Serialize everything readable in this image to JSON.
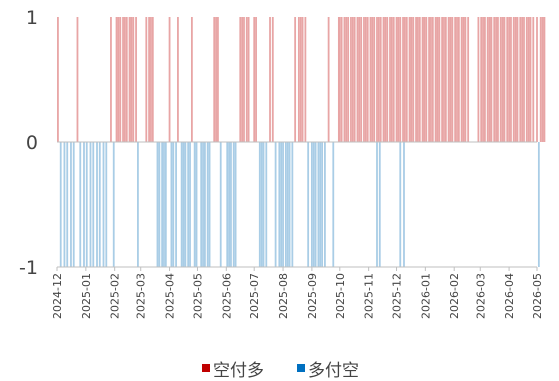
{
  "chart_data": {
    "type": "bar",
    "ylim": [
      -1,
      1
    ],
    "yticks": [
      "1",
      "0",
      "-1"
    ],
    "x_range": [
      "2024-12",
      "2026-05"
    ],
    "x_tick_labels": [
      "2024-12",
      "2025-01",
      "2025-02",
      "2025-03",
      "2025-04",
      "2025-05",
      "2025-06",
      "2025-07",
      "2025-08",
      "2025-09",
      "2025-10",
      "2025-11",
      "2025-12",
      "2026-01",
      "2026-02",
      "2026-03",
      "2026-04",
      "2026-05"
    ],
    "legend": {
      "position": "bottom"
    },
    "colors": {
      "positive": "#e8a5a5",
      "negative": "#a9cde6",
      "axis": "#bfbfbf",
      "legend_positive": "#c00000",
      "legend_negative": "#0070c0"
    },
    "series": [
      {
        "name": "空付多",
        "value": 1,
        "dates": [
          "2024-12-02",
          "2024-12-23",
          "2025-01-28",
          "2025-02-03",
          "2025-02-05",
          "2025-02-07",
          "2025-02-10",
          "2025-02-12",
          "2025-02-14",
          "2025-02-17",
          "2025-02-19",
          "2025-02-21",
          "2025-02-24",
          "2025-03-07",
          "2025-03-10",
          "2025-03-12",
          "2025-03-14",
          "2025-04-01",
          "2025-04-10",
          "2025-04-25",
          "2025-05-19",
          "2025-05-21",
          "2025-05-23",
          "2025-06-16",
          "2025-06-18",
          "2025-06-20",
          "2025-06-23",
          "2025-06-25",
          "2025-07-01",
          "2025-07-03",
          "2025-07-18",
          "2025-07-21",
          "2025-08-14",
          "2025-08-18",
          "2025-08-20",
          "2025-08-22",
          "2025-08-25",
          "2025-09-19",
          "2025-09-30",
          "2025-10-01",
          "2025-10-03",
          "2025-10-06",
          "2025-10-08",
          "2025-10-10",
          "2025-10-13",
          "2025-10-15",
          "2025-10-17",
          "2025-10-20",
          "2025-10-22",
          "2025-10-24",
          "2025-10-27",
          "2025-10-29",
          "2025-10-31",
          "2025-11-03",
          "2025-11-05",
          "2025-11-07",
          "2025-11-10",
          "2025-11-12",
          "2025-11-14",
          "2025-11-17",
          "2025-11-19",
          "2025-11-21",
          "2025-11-24",
          "2025-11-26",
          "2025-11-28",
          "2025-12-01",
          "2025-12-03",
          "2025-12-05",
          "2025-12-08",
          "2025-12-10",
          "2025-12-12",
          "2025-12-15",
          "2025-12-17",
          "2025-12-19",
          "2025-12-22",
          "2025-12-24",
          "2025-12-26",
          "2025-12-29",
          "2025-12-31",
          "2026-01-02",
          "2026-01-05",
          "2026-01-07",
          "2026-01-09",
          "2026-01-12",
          "2026-01-14",
          "2026-01-16",
          "2026-01-19",
          "2026-01-21",
          "2026-01-23",
          "2026-01-26",
          "2026-01-28",
          "2026-01-30",
          "2026-02-02",
          "2026-02-04",
          "2026-02-06",
          "2026-02-09",
          "2026-02-11",
          "2026-02-13",
          "2026-02-16",
          "2026-02-27",
          "2026-03-02",
          "2026-03-04",
          "2026-03-06",
          "2026-03-09",
          "2026-03-11",
          "2026-03-13",
          "2026-03-16",
          "2026-03-18",
          "2026-03-20",
          "2026-03-23",
          "2026-03-25",
          "2026-03-27",
          "2026-03-30",
          "2026-04-01",
          "2026-04-03",
          "2026-04-06",
          "2026-04-08",
          "2026-04-10",
          "2026-04-13",
          "2026-04-15",
          "2026-04-17",
          "2026-04-20",
          "2026-04-22",
          "2026-04-24",
          "2026-04-27",
          "2026-05-01",
          "2026-05-05",
          "2026-05-07",
          "2026-05-09"
        ]
      },
      {
        "name": "多付空",
        "value": -1,
        "dates": [
          "2024-12-05",
          "2024-12-09",
          "2024-12-12",
          "2024-12-16",
          "2024-12-19",
          "2024-12-26",
          "2024-12-30",
          "2025-01-02",
          "2025-01-06",
          "2025-01-09",
          "2025-01-13",
          "2025-01-16",
          "2025-01-20",
          "2025-01-23",
          "2025-01-31",
          "2025-02-26",
          "2025-03-19",
          "2025-03-21",
          "2025-03-24",
          "2025-03-26",
          "2025-03-28",
          "2025-04-03",
          "2025-04-05",
          "2025-04-08",
          "2025-04-14",
          "2025-04-16",
          "2025-04-18",
          "2025-04-21",
          "2025-04-23",
          "2025-04-28",
          "2025-04-30",
          "2025-05-05",
          "2025-05-07",
          "2025-05-09",
          "2025-05-12",
          "2025-05-14",
          "2025-05-26",
          "2025-06-02",
          "2025-06-04",
          "2025-06-06",
          "2025-06-09",
          "2025-06-11",
          "2025-07-07",
          "2025-07-09",
          "2025-07-11",
          "2025-07-14",
          "2025-07-24",
          "2025-07-28",
          "2025-07-30",
          "2025-08-01",
          "2025-08-04",
          "2025-08-06",
          "2025-08-08",
          "2025-08-11",
          "2025-08-28",
          "2025-09-01",
          "2025-09-03",
          "2025-09-05",
          "2025-09-08",
          "2025-09-10",
          "2025-09-12",
          "2025-09-15",
          "2025-09-24",
          "2025-11-10",
          "2025-11-13",
          "2025-12-05",
          "2025-12-09",
          "2026-05-03"
        ]
      }
    ]
  }
}
